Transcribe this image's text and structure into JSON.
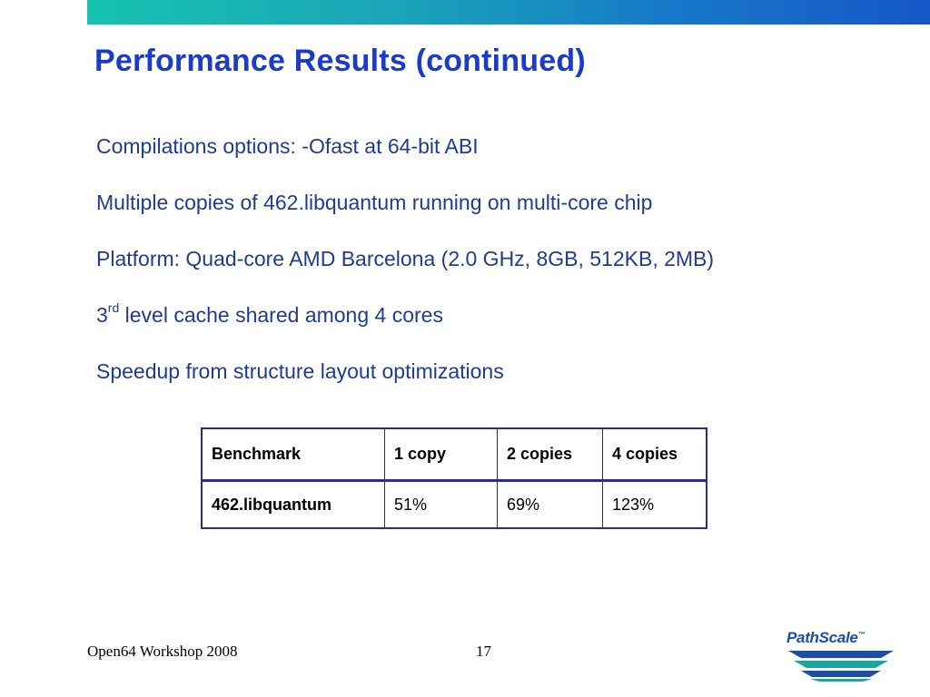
{
  "slide": {
    "title": "Performance Results (continued)",
    "bullets": [
      "Compilations options: -Ofast at 64-bit ABI",
      "Multiple copies of 462.libquantum running on multi-core chip",
      "Platform: Quad-core AMD Barcelona (2.0 GHz, 8GB, 512KB, 2MB)"
    ],
    "cache_bullet": {
      "prefix": "3",
      "superscript": "rd",
      "rest": " level cache shared among 4 cores"
    },
    "last_bullet": "Speedup from structure layout optimizations"
  },
  "table": {
    "headers": [
      "Benchmark",
      "1 copy",
      "2 copies",
      "4 copies"
    ],
    "rows": [
      [
        "462.libquantum",
        "51%",
        "69%",
        "123%"
      ]
    ]
  },
  "footer": {
    "event": "Open64 Workshop 2008",
    "page_number": "17"
  },
  "logo": {
    "text": "PathScale",
    "trademark": "™"
  },
  "colors": {
    "title": "#1a3cc6",
    "body_text": "#1f3d8c",
    "table_border": "#2c2c8a",
    "bar_start": "#16c3b0",
    "bar_end": "#1656c8"
  }
}
